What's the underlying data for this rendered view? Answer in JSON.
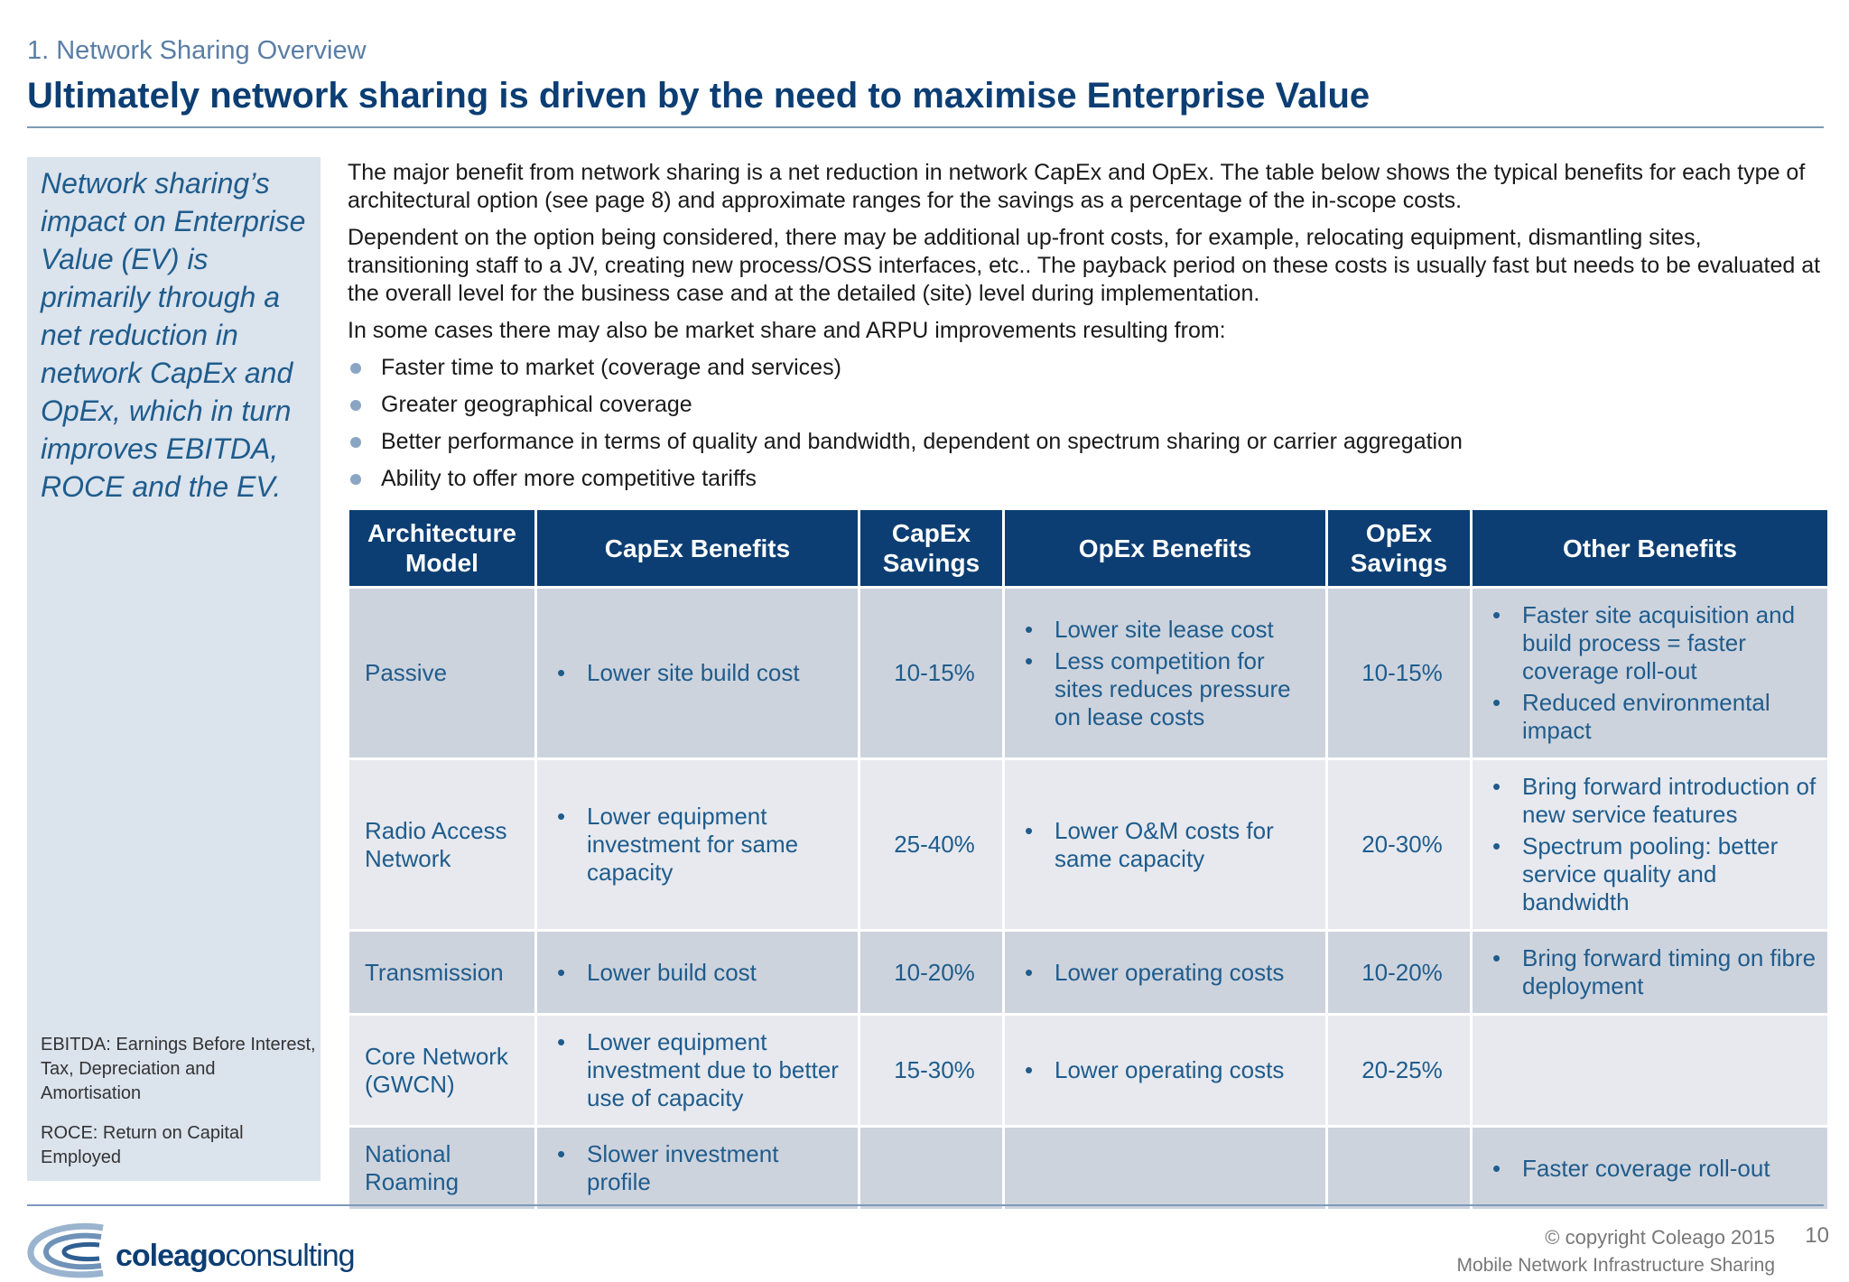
{
  "header": {
    "section": "1. Network Sharing Overview",
    "title": "Ultimately network sharing is driven by the need to maximise Enterprise Value"
  },
  "sidebar": {
    "quote": "Network sharing’s impact on Enterprise Value (EV) is primarily through a net reduction in network CapEx and OpEx, which in turn improves EBITDA, ROCE and the EV.",
    "notes": [
      "EBITDA: Earnings Before Interest, Tax, Depreciation and Amortisation",
      "ROCE: Return on Capital Employed"
    ]
  },
  "intro": {
    "paragraphs": [
      "The major benefit from network sharing is a net reduction in network CapEx and OpEx. The table below shows the typical benefits for each type of architectural option (see page 8) and approximate ranges for the savings as a percentage of the in-scope costs.",
      "Dependent on the option being considered, there may be additional up-front costs, for example, relocating equipment, dismantling sites, transitioning staff to a JV, creating new process/OSS interfaces, etc.. The payback period on these costs is usually fast but needs to be evaluated at the overall level for the business case and at the detailed (site) level during implementation.",
      "In some cases there may also be market share and ARPU improvements resulting from:"
    ],
    "bullets": [
      "Faster time to market (coverage and services)",
      "Greater geographical coverage",
      "Better performance in terms of quality and bandwidth, dependent on spectrum sharing or carrier aggregation",
      "Ability to offer more competitive tariffs"
    ]
  },
  "table": {
    "headers": [
      "Architecture Model",
      "CapEx Benefits",
      "CapEx Savings",
      "OpEx Benefits",
      "OpEx Savings",
      "Other Benefits"
    ],
    "rows": [
      {
        "model": "Passive",
        "capex_benefits": [
          "Lower site build cost"
        ],
        "capex_savings": "10-15%",
        "opex_benefits": [
          "Lower site lease cost",
          "Less competition for sites reduces pressure on lease costs"
        ],
        "opex_savings": "10-15%",
        "other_benefits": [
          "Faster site acquisition and build process = faster coverage roll-out",
          "Reduced environmental impact"
        ]
      },
      {
        "model": "Radio Access Network",
        "capex_benefits": [
          "Lower equipment investment for same capacity"
        ],
        "capex_savings": "25-40%",
        "opex_benefits": [
          "Lower O&M costs for same capacity"
        ],
        "opex_savings": "20-30%",
        "other_benefits": [
          "Bring forward introduction of new service features",
          "Spectrum pooling: better service quality and bandwidth"
        ]
      },
      {
        "model": "Transmission",
        "capex_benefits": [
          "Lower build cost"
        ],
        "capex_savings": "10-20%",
        "opex_benefits": [
          "Lower operating costs"
        ],
        "opex_savings": "10-20%",
        "other_benefits": [
          "Bring forward timing on fibre deployment"
        ]
      },
      {
        "model": "Core Network (GWCN)",
        "capex_benefits": [
          "Lower equipment investment due to better use of capacity"
        ],
        "capex_savings": "15-30%",
        "opex_benefits": [
          "Lower operating costs"
        ],
        "opex_savings": "20-25%",
        "other_benefits": []
      },
      {
        "model": "National Roaming",
        "capex_benefits": [
          "Slower investment profile"
        ],
        "capex_savings": "",
        "opex_benefits": [],
        "opex_savings": "",
        "other_benefits": [
          "Faster coverage roll-out"
        ]
      }
    ]
  },
  "footer": {
    "logo_bold": "coleago",
    "logo_light": "consulting",
    "copyright": "© copyright Coleago 2015",
    "document": "Mobile Network Infrastructure Sharing",
    "page_number": "10"
  },
  "colors": {
    "navy": "#0c3e73",
    "accent_blue": "#1f5c8c",
    "row_dark": "#cdd3dd",
    "row_light": "#e7e9ee",
    "sidebar_bg": "#dbe3ed"
  }
}
